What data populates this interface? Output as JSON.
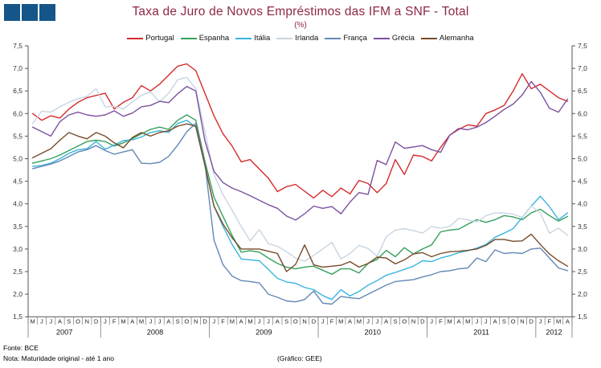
{
  "header": {
    "title": "Taxa de Juro de Novos Empréstimos das IFM a SNF - Total",
    "subtitle": "(%)"
  },
  "footer": {
    "source": "Fonte: BCE",
    "note": "Nota: Maturidade original - até 1 ano",
    "credit": "(Gráfico: GEE)"
  },
  "colors": {
    "logo": "#15558a",
    "title": "#8e2845",
    "axis": "#555555",
    "tick_label": "#333333"
  },
  "chart_data": {
    "type": "line",
    "title": "Taxa de Juro de Novos Empréstimos das IFM a SNF - Total",
    "subtitle": "(%)",
    "ylabel": "(%)",
    "ylim": [
      1.5,
      7.5
    ],
    "ytick_step": 0.5,
    "grid": false,
    "legend_position": "top",
    "x_months": [
      "M",
      "J",
      "J",
      "A",
      "S",
      "O",
      "N",
      "D",
      "J",
      "F",
      "M",
      "A",
      "M",
      "J",
      "J",
      "A",
      "S",
      "O",
      "N",
      "D",
      "J",
      "F",
      "M",
      "A",
      "M",
      "J",
      "J",
      "A",
      "S",
      "O",
      "N",
      "D",
      "J",
      "F",
      "M",
      "A",
      "M",
      "J",
      "J",
      "A",
      "S",
      "O",
      "N",
      "D",
      "J",
      "F",
      "M",
      "A",
      "M",
      "J",
      "J",
      "A",
      "S",
      "O",
      "N",
      "D",
      "J",
      "F",
      "M",
      "A"
    ],
    "x_years": [
      {
        "label": "2007",
        "start": 0,
        "count": 8
      },
      {
        "label": "2008",
        "start": 8,
        "count": 12
      },
      {
        "label": "2009",
        "start": 20,
        "count": 12
      },
      {
        "label": "2010",
        "start": 32,
        "count": 12
      },
      {
        "label": "2011",
        "start": 44,
        "count": 12
      },
      {
        "label": "2012",
        "start": 56,
        "count": 4
      }
    ],
    "series": [
      {
        "name": "Portugal",
        "color": "#d62a2d",
        "values": [
          6.0,
          5.85,
          5.95,
          5.9,
          6.1,
          6.25,
          6.35,
          6.4,
          6.45,
          6.1,
          6.25,
          6.35,
          6.62,
          6.5,
          6.65,
          6.85,
          7.05,
          7.1,
          6.95,
          6.45,
          5.95,
          5.55,
          5.28,
          4.93,
          4.98,
          4.77,
          4.57,
          4.27,
          4.38,
          4.43,
          4.28,
          4.13,
          4.3,
          4.16,
          4.35,
          4.22,
          4.52,
          4.45,
          4.25,
          4.45,
          4.98,
          4.65,
          5.08,
          5.05,
          4.95,
          5.25,
          5.52,
          5.65,
          5.75,
          5.72,
          6.0,
          6.08,
          6.18,
          6.5,
          6.88,
          6.55,
          6.65,
          6.5,
          6.35,
          6.27
        ]
      },
      {
        "name": "Espanha",
        "color": "#33a05c",
        "values": [
          4.9,
          4.95,
          5.0,
          5.08,
          5.18,
          5.28,
          5.38,
          5.41,
          5.38,
          5.28,
          5.35,
          5.45,
          5.55,
          5.65,
          5.7,
          5.65,
          5.85,
          5.97,
          5.85,
          4.95,
          4.15,
          3.72,
          3.3,
          2.93,
          2.96,
          2.93,
          2.8,
          2.68,
          2.6,
          2.56,
          2.6,
          2.62,
          2.53,
          2.44,
          2.56,
          2.56,
          2.47,
          2.68,
          2.77,
          2.97,
          2.83,
          3.03,
          2.89,
          3.0,
          3.09,
          3.38,
          3.42,
          3.44,
          3.55,
          3.65,
          3.59,
          3.65,
          3.74,
          3.71,
          3.65,
          3.8,
          3.88,
          3.74,
          3.62,
          3.72
        ]
      },
      {
        "name": "Itália",
        "color": "#39b4dd",
        "values": [
          4.83,
          4.85,
          4.9,
          5.0,
          5.12,
          5.2,
          5.22,
          5.38,
          5.21,
          5.3,
          5.4,
          5.42,
          5.48,
          5.58,
          5.62,
          5.58,
          5.78,
          5.85,
          5.7,
          4.85,
          3.95,
          3.5,
          3.1,
          2.78,
          2.76,
          2.74,
          2.55,
          2.35,
          2.27,
          2.24,
          2.15,
          2.1,
          1.97,
          1.88,
          2.1,
          1.96,
          2.06,
          2.2,
          2.3,
          2.42,
          2.48,
          2.55,
          2.62,
          2.74,
          2.72,
          2.8,
          2.85,
          2.92,
          2.96,
          3.02,
          3.1,
          3.26,
          3.35,
          3.45,
          3.7,
          3.95,
          4.17,
          3.94,
          3.65,
          3.8
        ]
      },
      {
        "name": "Irlanda",
        "color": "#c7d5e3",
        "values": [
          5.78,
          6.05,
          6.03,
          6.15,
          6.25,
          6.33,
          6.38,
          6.55,
          6.15,
          6.16,
          6.1,
          6.26,
          6.4,
          6.48,
          6.26,
          6.45,
          6.75,
          6.8,
          6.55,
          5.6,
          4.65,
          4.2,
          3.86,
          3.5,
          3.18,
          3.43,
          3.12,
          3.06,
          2.94,
          2.8,
          2.73,
          2.86,
          3.0,
          3.15,
          2.78,
          2.9,
          3.08,
          3.01,
          2.84,
          3.27,
          3.42,
          3.45,
          3.41,
          3.35,
          3.5,
          3.46,
          3.5,
          3.68,
          3.65,
          3.6,
          3.74,
          3.8,
          3.8,
          3.77,
          3.7,
          3.95,
          3.8,
          3.35,
          3.46,
          3.3
        ]
      },
      {
        "name": "França",
        "color": "#6288b4",
        "values": [
          4.78,
          4.83,
          4.88,
          4.95,
          5.05,
          5.15,
          5.2,
          5.29,
          5.18,
          5.1,
          5.15,
          5.2,
          4.9,
          4.89,
          4.92,
          5.05,
          5.3,
          5.6,
          5.78,
          4.9,
          3.2,
          2.65,
          2.4,
          2.3,
          2.28,
          2.25,
          2.0,
          1.93,
          1.85,
          1.83,
          1.88,
          2.07,
          1.8,
          1.78,
          1.95,
          1.92,
          1.9,
          2.0,
          2.1,
          2.2,
          2.28,
          2.3,
          2.32,
          2.38,
          2.43,
          2.5,
          2.52,
          2.56,
          2.58,
          2.8,
          2.72,
          2.98,
          2.9,
          2.92,
          2.9,
          3.0,
          3.02,
          2.8,
          2.58,
          2.52
        ]
      },
      {
        "name": "Grécia",
        "color": "#7b51a1",
        "values": [
          5.7,
          5.6,
          5.5,
          5.82,
          5.97,
          6.03,
          5.97,
          5.94,
          5.97,
          6.06,
          5.94,
          6.01,
          6.15,
          6.18,
          6.27,
          6.24,
          6.44,
          6.6,
          6.5,
          5.4,
          4.72,
          4.47,
          4.35,
          4.27,
          4.18,
          4.08,
          3.98,
          3.9,
          3.73,
          3.64,
          3.78,
          3.95,
          3.9,
          3.94,
          3.78,
          4.04,
          4.25,
          4.21,
          4.96,
          4.87,
          5.37,
          5.23,
          5.26,
          5.29,
          5.2,
          5.14,
          5.52,
          5.67,
          5.64,
          5.7,
          5.8,
          5.94,
          6.09,
          6.21,
          6.41,
          6.71,
          6.47,
          6.12,
          6.03,
          6.32
        ]
      },
      {
        "name": "Alemanha",
        "color": "#784a28",
        "values": [
          5.02,
          5.12,
          5.22,
          5.41,
          5.58,
          5.5,
          5.44,
          5.58,
          5.5,
          5.35,
          5.24,
          5.47,
          5.58,
          5.5,
          5.58,
          5.62,
          5.72,
          5.77,
          5.72,
          4.85,
          3.95,
          3.55,
          3.25,
          3.0,
          3.0,
          3.0,
          2.95,
          2.9,
          2.5,
          2.66,
          3.09,
          2.65,
          2.6,
          2.62,
          2.64,
          2.72,
          2.6,
          2.68,
          2.82,
          2.8,
          2.67,
          2.76,
          2.89,
          2.92,
          2.83,
          2.9,
          2.94,
          2.95,
          2.97,
          3.0,
          3.08,
          3.21,
          3.21,
          3.17,
          3.18,
          3.33,
          3.1,
          2.89,
          2.74,
          2.62
        ]
      }
    ]
  }
}
